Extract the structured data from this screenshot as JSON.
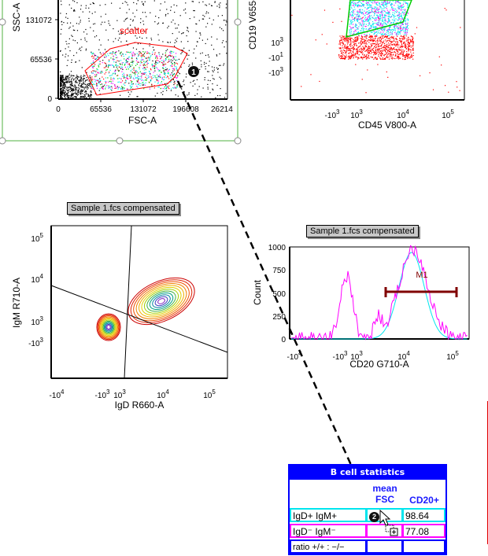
{
  "plots": {
    "scatter_plot": {
      "gate_label": "scatter",
      "x_label": "FSC-A",
      "y_label": "SSC-A",
      "x_ticks": [
        "0",
        "65536",
        "131072",
        "196608",
        "26214"
      ],
      "y_ticks": [
        "0",
        "65536",
        "131072"
      ],
      "gate_color": "#ff0000",
      "step_badge": "1"
    },
    "cd19_plot": {
      "x_label": "CD45 V800-A",
      "y_label": "CD19 V655-",
      "x_ticks": [
        "-10^3",
        "10^3",
        "10^4",
        "10^5"
      ],
      "y_ticks": [
        "10^3",
        "-10^1",
        "-10^3"
      ],
      "gate_color": "#00cc00"
    },
    "igd_igm_plot": {
      "caption": "Sample 1.fcs compensated",
      "x_label": "IgD R660-A",
      "y_label": "IgM R710-A",
      "x_ticks": [
        "-10^4",
        "-10^3",
        "10^3",
        "10^4",
        "10^5"
      ],
      "y_ticks": [
        "10^5",
        "10^4",
        "10^3",
        "-10^3"
      ]
    },
    "cd20_histogram": {
      "caption": "Sample 1.fcs compensated",
      "x_label": "CD20 G710-A",
      "y_label": "Count",
      "x_ticks": [
        "-10^4",
        "-10^3",
        "10^3",
        "10^4",
        "10^5"
      ],
      "y_ticks": [
        "0",
        "250",
        "500",
        "750",
        "1000"
      ],
      "marker_label": "M1",
      "marker_color": "#800000",
      "series_colors": [
        "#ff00ff",
        "#00e5ee"
      ]
    }
  },
  "stats_table": {
    "title": "B cell statistics",
    "columns": [
      "",
      "mean FSC",
      "CD20+"
    ],
    "col_mean_line1": "mean",
    "col_mean_line2": "FSC",
    "col_cd20": "CD20+",
    "rows": [
      {
        "label": "IgD+ IgM+",
        "mean_fsc": "",
        "cd20": "98.64",
        "border_color": "#00e5ee"
      },
      {
        "label": "IgD⁻ IgM⁻",
        "mean_fsc": "",
        "cd20": "77.08",
        "border_color": "#ff00ff"
      },
      {
        "label": "ratio +/+ : −/−",
        "mean_fsc": "",
        "cd20": "",
        "border_color": "#0000ff"
      }
    ],
    "step_badge": "2"
  }
}
